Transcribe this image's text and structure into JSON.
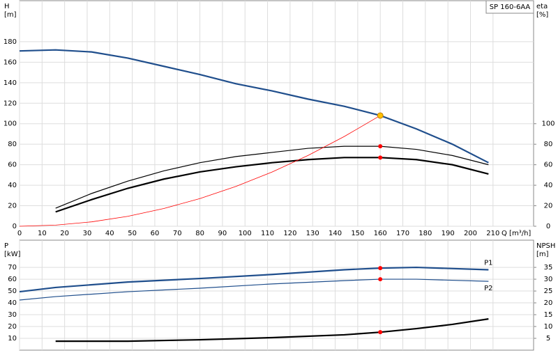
{
  "chart_data": [
    {
      "type": "line",
      "title": "SP 160-6AA",
      "ylabel": [
        "H",
        "[m]"
      ],
      "y2label": [
        "eta",
        "[%]"
      ],
      "xlabel": "Q [m³/h]",
      "xlim": [
        0,
        228
      ],
      "xticks": [
        0,
        10,
        20,
        30,
        40,
        50,
        60,
        70,
        80,
        90,
        100,
        110,
        120,
        130,
        140,
        150,
        160,
        170,
        180,
        190,
        200,
        210
      ],
      "ylim": [
        0,
        220
      ],
      "yticks": [
        0,
        20,
        40,
        60,
        80,
        100,
        120,
        140,
        160,
        180
      ],
      "y2lim": [
        0,
        220
      ],
      "y2ticks": [
        0,
        20,
        40,
        60,
        80,
        100
      ],
      "grid": true,
      "show_xtick_labels": true,
      "series": [
        {
          "color": "#1f4e8c",
          "width": 2.2,
          "x": [
            0,
            16,
            32,
            48,
            64,
            80,
            96,
            112,
            128,
            144,
            160,
            176,
            192,
            208
          ],
          "values": [
            171,
            172,
            170,
            164,
            156,
            148,
            139,
            132,
            124,
            117,
            108,
            95,
            80,
            62
          ]
        },
        {
          "color": "#000000",
          "width": 1.2,
          "axis": "y2",
          "x": [
            16,
            32,
            48,
            64,
            80,
            96,
            112,
            128,
            144,
            160,
            176,
            192,
            208
          ],
          "values": [
            17.6,
            32,
            44,
            54,
            62,
            68,
            72,
            76,
            78,
            78,
            75,
            69,
            60
          ]
        },
        {
          "color": "#000000",
          "width": 2.2,
          "axis": "y2",
          "x": [
            16,
            32,
            48,
            64,
            80,
            96,
            112,
            128,
            144,
            160,
            176,
            192,
            208
          ],
          "values": [
            14,
            26,
            37,
            46,
            53,
            58,
            62,
            65,
            67,
            67,
            65,
            60,
            51
          ]
        },
        {
          "color": "#ff0000",
          "width": 0.8,
          "x": [
            0,
            16,
            32,
            48,
            64,
            80,
            96,
            112,
            128,
            144,
            160
          ],
          "values": [
            0,
            1.1,
            4.3,
            9.7,
            17.3,
            27,
            38.9,
            52.9,
            69.1,
            87.5,
            108
          ]
        }
      ],
      "markers": [
        {
          "x": 160,
          "y": 108,
          "color": "#ffc000"
        },
        {
          "x": 160,
          "y": 78,
          "color": "#ff0000",
          "axis": "y2"
        },
        {
          "x": 160,
          "y": 67,
          "color": "#ff0000",
          "axis": "y2"
        }
      ]
    },
    {
      "type": "line",
      "ylabel": [
        "P",
        "[kW]"
      ],
      "y2label": [
        "NPSH",
        "[m]"
      ],
      "xlim": [
        0,
        228
      ],
      "xticks": [
        0,
        10,
        20,
        30,
        40,
        50,
        60,
        70,
        80,
        90,
        100,
        110,
        120,
        130,
        140,
        150,
        160,
        170,
        180,
        190,
        200,
        210
      ],
      "ylim": [
        0,
        93
      ],
      "yticks": [
        10,
        20,
        30,
        40,
        50,
        60,
        70
      ],
      "y2lim": [
        0,
        46.5
      ],
      "y2ticks": [
        5,
        10,
        15,
        20,
        25,
        30,
        35
      ],
      "grid": true,
      "show_xtick_labels": false,
      "series": [
        {
          "name": "P1",
          "color": "#1f4e8c",
          "width": 2.2,
          "x": [
            0,
            16,
            48,
            80,
            112,
            144,
            160,
            176,
            208
          ],
          "values": [
            49.4,
            53,
            57.6,
            60.6,
            64,
            68,
            69.4,
            70,
            68
          ]
        },
        {
          "name": "P2",
          "color": "#1f4e8c",
          "width": 1.2,
          "x": [
            0,
            16,
            48,
            80,
            112,
            144,
            160,
            176,
            208
          ],
          "values": [
            42.4,
            45.3,
            49.4,
            52.4,
            56,
            58.8,
            60,
            60,
            58.2
          ]
        },
        {
          "color": "#000000",
          "width": 2.2,
          "axis": "y2",
          "x": [
            16,
            48,
            80,
            112,
            144,
            160,
            176,
            192,
            208
          ],
          "values": [
            3.8,
            3.8,
            4.4,
            5.3,
            6.5,
            7.6,
            9.1,
            10.9,
            13.2
          ]
        }
      ],
      "markers": [
        {
          "x": 160,
          "y": 69.4,
          "color": "#ff0000"
        },
        {
          "x": 160,
          "y": 60,
          "color": "#ff0000"
        },
        {
          "x": 160,
          "y": 7.6,
          "color": "#ff0000",
          "axis": "y2"
        }
      ]
    }
  ]
}
